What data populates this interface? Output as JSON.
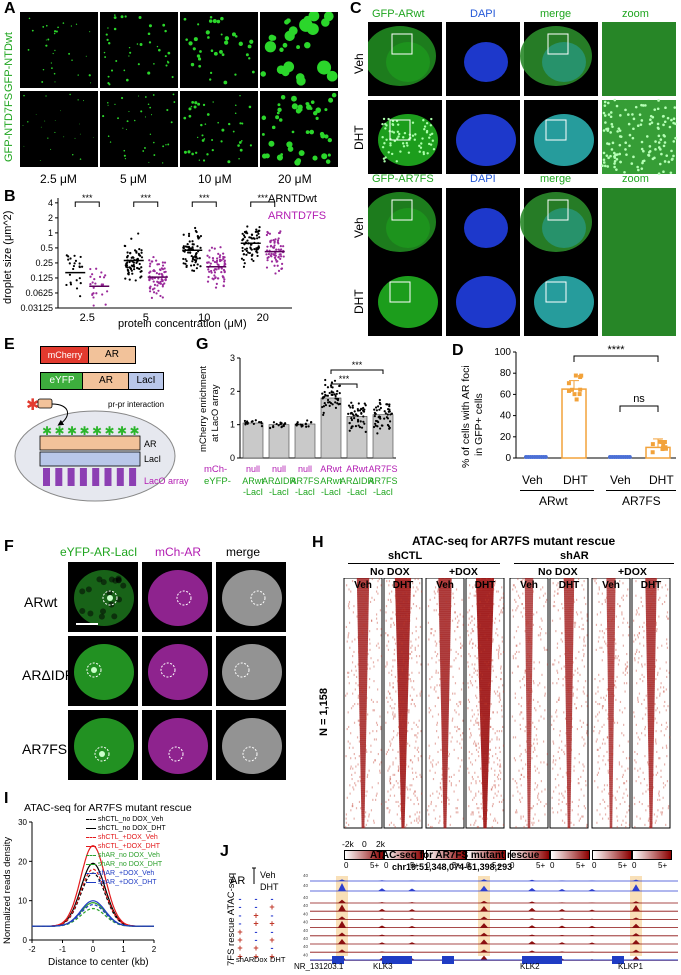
{
  "panels": {
    "A": "A",
    "B": "B",
    "C": "C",
    "D": "D",
    "E": "E",
    "F": "F",
    "G": "G",
    "H": "H",
    "I": "I",
    "J": "J"
  },
  "a": {
    "rows": [
      "GFP-NTDwt",
      "GFP-NTD7FS"
    ],
    "cols": [
      "2.5 μM",
      "5 μM",
      "10 μM",
      "20 μM"
    ]
  },
  "b": {
    "legend": [
      "ARNTDwt",
      "ARNTD7FS"
    ],
    "sig": "***",
    "chart_data": {
      "type": "scatter",
      "categories": [
        "2.5",
        "5",
        "10",
        "20"
      ],
      "xlabel": "protein concentration (μM)",
      "ylabel": "droplet size (μm^2)",
      "yscale": "log2",
      "yticks": [
        "0.03125",
        "0.0625",
        "0.125",
        "0.25",
        "0.5",
        "1",
        "2",
        "4"
      ],
      "series": [
        {
          "name": "ARNTDwt",
          "color": "#000000",
          "medians": [
            0.16,
            0.28,
            0.45,
            0.62
          ]
        },
        {
          "name": "ARNTD7FS",
          "color": "#9b2a9b",
          "medians": [
            0.085,
            0.13,
            0.21,
            0.42
          ]
        }
      ]
    }
  },
  "c": {
    "top_headers": [
      "GFP-ARwt",
      "DAPI",
      "merge",
      "zoom"
    ],
    "bot_headers": [
      "GFP-AR7FS",
      "DAPI",
      "merge",
      "zoom"
    ],
    "rows": [
      "Veh",
      "DHT"
    ]
  },
  "d": {
    "ylabel1": "% of cells with AR foci",
    "ylabel2": "in GFP+ cells",
    "ns": "ns",
    "sig": "****",
    "conds": [
      "Veh",
      "DHT",
      "Veh",
      "DHT"
    ],
    "groups": [
      "ARwt",
      "AR7FS"
    ],
    "chart_data": {
      "type": "bar",
      "categories": [
        "ARwt Veh",
        "ARwt DHT",
        "AR7FS Veh",
        "AR7FS DHT"
      ],
      "values": [
        0,
        65,
        0,
        10
      ],
      "ylim": [
        0,
        100
      ],
      "yticks": [
        "0",
        "20",
        "40",
        "60",
        "80",
        "100"
      ]
    }
  },
  "e": {
    "mcherry": "mCherry",
    "ar": "AR",
    "eyfp": "eYFP",
    "laci": "LacI",
    "interaction": "pr-pr interaction",
    "laco": "LacO array"
  },
  "g": {
    "ylabel1": "mCherry enrichment",
    "ylabel2": "at LacO array",
    "sig": "***",
    "mch_label": "mCh-",
    "eyfp_label": "eYFP-",
    "mch": [
      "null",
      "null",
      "null",
      "ARwt",
      "ARwt",
      "AR7FS"
    ],
    "eyfp": [
      "ARwt",
      "ARΔIDR",
      "AR7FS",
      "ARwt",
      "ARΔIDR",
      "AR7FS"
    ],
    "laci": "-LacI",
    "chart_data": {
      "type": "bar",
      "categories": [
        "null/ARwt-LacI",
        "null/ARΔIDR-LacI",
        "null/AR7FS-LacI",
        "ARwt/ARwt-LacI",
        "ARwt/ARΔIDR-LacI",
        "AR7FS/AR7FS-LacI"
      ],
      "values": [
        1.05,
        1.0,
        1.02,
        1.8,
        1.25,
        1.3
      ],
      "ylim": [
        0,
        3
      ],
      "yticks": [
        "0",
        "1",
        "2",
        "3"
      ]
    }
  },
  "f": {
    "headers": [
      "eYFP-AR-LacI",
      "mCh-AR",
      "merge"
    ],
    "rows": [
      "ARwt",
      "ARΔIDR",
      "AR7FS"
    ]
  },
  "h": {
    "title": "ATAC-seq for AR7FS mutant rescue",
    "groups": [
      "shCTL",
      "shAR"
    ],
    "dox": [
      "No DOX",
      "+DOX",
      "No DOX",
      "+DOX"
    ],
    "conds": [
      "Veh",
      "DHT",
      "Veh",
      "DHT",
      "Veh",
      "DHT",
      "Veh",
      "DHT"
    ],
    "n": "N = 1,158",
    "axis": [
      "-2k",
      "0",
      "2k"
    ],
    "scale": [
      "0",
      "5+"
    ]
  },
  "i": {
    "title": "ATAC-seq for AR7FS mutant rescue",
    "ylabel": "Normalized reads density",
    "xlabel": "Distance to center (kb)",
    "legend": [
      "shCTL_no DOX_Veh",
      "shCTL_no DOX_DHT",
      "shCTL_+DOX_Veh",
      "shCTL_+DOX_DHT",
      "shAR_no DOX_Veh",
      "shAR_no DOX_DHT",
      "shAR_+DOX_Veh",
      "shAR_+DOX_DHT"
    ],
    "chart_data": {
      "type": "line",
      "x": [
        -2,
        -1,
        0,
        1,
        2
      ],
      "xlim": [
        -2,
        2
      ],
      "ylim": [
        0,
        30
      ],
      "yticks": [
        "0",
        "10",
        "20",
        "30"
      ],
      "xticks": [
        "-2",
        "-1",
        "0",
        "1",
        "2"
      ],
      "peaks": [
        17,
        19.5,
        18,
        24,
        8,
        9.5,
        9,
        10
      ],
      "colors": [
        "#000000",
        "#000000",
        "#e31a1c",
        "#e31a1c",
        "#2ca02c",
        "#2ca02c",
        "#1f3cc4",
        "#1f3cc4"
      ]
    }
  },
  "j": {
    "title": "ATAC-seq for AR7FS mutant rescue",
    "coords": "chr19:51,348,074-51,398,293",
    "ar": "AR",
    "veh": "Veh",
    "dht": "DHT",
    "side": "7FS rescue ATAC-seq",
    "bottom": [
      "shAR",
      "Dox",
      "DHT"
    ],
    "genes": [
      "NR_131203.1",
      "KLK3",
      "KLK2",
      "KLKP1"
    ],
    "scale_vals": [
      "40",
      "0"
    ],
    "rows": [
      [
        "-",
        "-",
        "-"
      ],
      [
        "-",
        "-",
        "+"
      ],
      [
        "-",
        "+",
        "-"
      ],
      [
        "-",
        "+",
        "+"
      ],
      [
        "+",
        "-",
        "-"
      ],
      [
        "+",
        "-",
        "+"
      ],
      [
        "+",
        "+",
        "-"
      ],
      [
        "+",
        "+",
        "+"
      ]
    ]
  }
}
